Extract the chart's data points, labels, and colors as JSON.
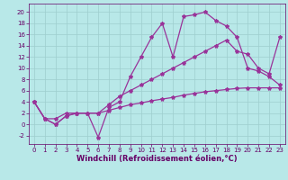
{
  "xlabel": "Windchill (Refroidissement éolien,°C)",
  "xlim": [
    -0.5,
    23.5
  ],
  "ylim": [
    -3.5,
    21.5
  ],
  "xticks": [
    0,
    1,
    2,
    3,
    4,
    5,
    6,
    7,
    8,
    9,
    10,
    11,
    12,
    13,
    14,
    15,
    16,
    17,
    18,
    19,
    20,
    21,
    22,
    23
  ],
  "yticks": [
    -2,
    0,
    2,
    4,
    6,
    8,
    10,
    12,
    14,
    16,
    18,
    20
  ],
  "bg_color": "#b8e8e8",
  "grid_color": "#9ecece",
  "line_color": "#993399",
  "line1_x": [
    0,
    1,
    2,
    3,
    4,
    5,
    6,
    7,
    8,
    9,
    10,
    11,
    12,
    13,
    14,
    15,
    16,
    17,
    18,
    19,
    20,
    21,
    22,
    23
  ],
  "line1_y": [
    4,
    1,
    1,
    2,
    2,
    2,
    -2.3,
    3,
    4,
    8.5,
    12,
    15.5,
    18,
    12,
    19.2,
    19.5,
    20,
    18.5,
    17.5,
    15.5,
    10,
    9.5,
    8.5,
    7
  ],
  "line2_x": [
    0,
    1,
    2,
    3,
    4,
    5,
    6,
    7,
    8,
    9,
    10,
    11,
    12,
    13,
    14,
    15,
    16,
    17,
    18,
    19,
    20,
    21,
    22,
    23
  ],
  "line2_y": [
    4,
    1,
    0,
    1.5,
    2,
    2,
    2,
    3.5,
    5,
    6,
    7,
    8,
    9,
    10,
    11,
    12,
    13,
    14,
    15,
    13,
    12.5,
    10,
    9,
    15.5
  ],
  "line3_x": [
    0,
    1,
    2,
    3,
    4,
    5,
    6,
    7,
    8,
    9,
    10,
    11,
    12,
    13,
    14,
    15,
    16,
    17,
    18,
    19,
    20,
    21,
    22,
    23
  ],
  "line3_y": [
    4,
    1,
    0,
    1.5,
    2,
    2,
    2,
    2.5,
    3,
    3.5,
    3.8,
    4.2,
    4.5,
    4.8,
    5.2,
    5.5,
    5.8,
    6.0,
    6.2,
    6.4,
    6.5,
    6.5,
    6.5,
    6.5
  ],
  "marker": "*",
  "markersize": 3,
  "linewidth": 0.9,
  "tick_fontsize": 5.0,
  "xlabel_fontsize": 6.0,
  "xlabel_color": "#660066",
  "tick_color": "#660066"
}
